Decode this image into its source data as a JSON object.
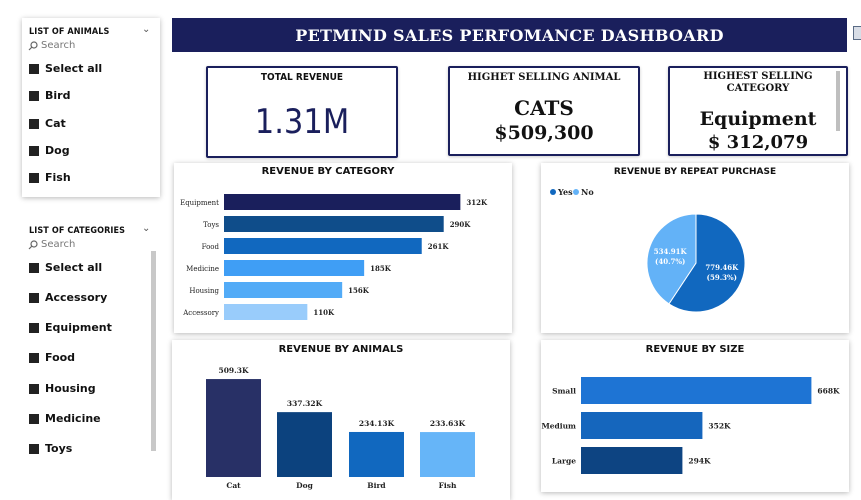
{
  "header": {
    "title": "PETMIND SALES PERFOMANCE DASHBOARD"
  },
  "animal_slicer": {
    "title": "LIST OF ANIMALS",
    "search_placeholder": "Search",
    "options": [
      "Select all",
      "Bird",
      "Cat",
      "Dog",
      "Fish"
    ]
  },
  "category_slicer": {
    "title": "LIST OF CATEGORIES",
    "search_placeholder": "Search",
    "options": [
      "Select all",
      "Accessory",
      "Equipment",
      "Food",
      "Housing",
      "Medicine",
      "Toys"
    ]
  },
  "kpis": {
    "total_revenue": {
      "label": "TOTAL REVENUE",
      "value": "1.31M"
    },
    "top_animal": {
      "label": "HIGHET SELLING ANIMAL",
      "name": "CATS",
      "value": "$509,300"
    },
    "top_category": {
      "label": "HIGHEST SELLING CATEGORY",
      "name": "Equipment",
      "value": "$ 312,079"
    }
  },
  "chart_titles": {
    "category": "REVENUE BY CATEGORY",
    "repeat": "REVENUE BY REPEAT PURCHASE",
    "animals": "REVENUE BY ANIMALS",
    "size": "REVENUE BY SIZE"
  },
  "chart_data": [
    {
      "type": "bar",
      "orientation": "horizontal",
      "title": "REVENUE BY CATEGORY",
      "categories": [
        "Equipment",
        "Toys",
        "Food",
        "Medicine",
        "Housing",
        "Accessory"
      ],
      "values": [
        312,
        290,
        261,
        185,
        156,
        110
      ],
      "labels": [
        "312K",
        "290K",
        "261K",
        "185K",
        "156K",
        "110K"
      ],
      "colors": [
        "#1a1f5c",
        "#0f4d8a",
        "#1168bf",
        "#3f9ef5",
        "#52abf7",
        "#99ccfb"
      ],
      "max": 330
    },
    {
      "type": "pie",
      "title": "REVENUE BY REPEAT PURCHASE",
      "legend": [
        "Yes",
        "No"
      ],
      "legend_colors": [
        "#1168bf",
        "#63b2f7"
      ],
      "values": [
        779.46,
        534.91
      ],
      "labels": [
        "779.46K",
        "534.91K"
      ],
      "percents": [
        "(59.3%)",
        "(40.7%)"
      ],
      "legend_position": "top-left"
    },
    {
      "type": "bar",
      "orientation": "vertical",
      "title": "REVENUE BY ANIMALS",
      "categories": [
        "Cat",
        "Dog",
        "Bird",
        "Fish"
      ],
      "values": [
        509.3,
        337.32,
        234.13,
        233.63
      ],
      "labels": [
        "509.3K",
        "337.32K",
        "234.13K",
        "233.63K"
      ],
      "colors": [
        "#283066",
        "#0c427e",
        "#1168bf",
        "#66b5f8"
      ],
      "max": 520
    },
    {
      "type": "bar",
      "orientation": "horizontal",
      "title": "REVENUE BY SIZE",
      "categories": [
        "Small",
        "Medium",
        "Large"
      ],
      "values": [
        668,
        352,
        294
      ],
      "labels": [
        "668K",
        "352K",
        "294K"
      ],
      "colors": [
        "#1e74d4",
        "#1566bd",
        "#0d4482"
      ],
      "max": 690
    }
  ]
}
